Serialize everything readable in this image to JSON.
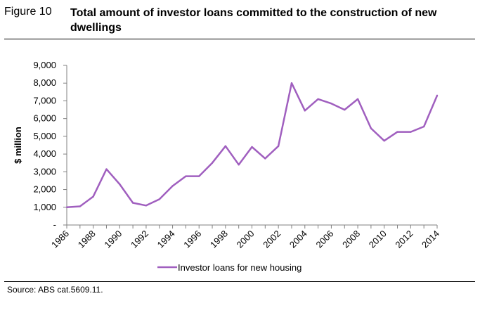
{
  "figure": {
    "label": "Figure 10",
    "title": "Total amount of investor loans committed to the construction of new dwellings"
  },
  "source": "Source: ABS cat.5609.11.",
  "colors": {
    "series": "#a05fbf",
    "axis": "#808080",
    "text": "#000000"
  },
  "chart_data": {
    "type": "line",
    "title": "Total amount of investor loans committed to the construction of new dwellings",
    "ylabel": "$ million",
    "xlabel": "",
    "ylim": [
      0,
      9000
    ],
    "xlim": [
      1986,
      2014
    ],
    "grid": false,
    "legend": "bottom",
    "y_ticks": [
      {
        "value": 0,
        "label": "-"
      },
      {
        "value": 1000,
        "label": "1,000"
      },
      {
        "value": 2000,
        "label": "2,000"
      },
      {
        "value": 3000,
        "label": "3,000"
      },
      {
        "value": 4000,
        "label": "4,000"
      },
      {
        "value": 5000,
        "label": "5,000"
      },
      {
        "value": 6000,
        "label": "6,000"
      },
      {
        "value": 7000,
        "label": "7,000"
      },
      {
        "value": 8000,
        "label": "8,000"
      },
      {
        "value": 9000,
        "label": "9,000"
      }
    ],
    "x_ticks": [
      "1986",
      "1988",
      "1990",
      "1992",
      "1994",
      "1996",
      "1998",
      "2000",
      "2002",
      "2004",
      "2006",
      "2008",
      "2010",
      "2012",
      "2014"
    ],
    "series": [
      {
        "name": "Investor loans for new housing",
        "x": [
          1986,
          1987,
          1988,
          1989,
          1990,
          1991,
          1992,
          1993,
          1994,
          1995,
          1996,
          1997,
          1998,
          1999,
          2000,
          2001,
          2002,
          2003,
          2004,
          2005,
          2006,
          2007,
          2008,
          2009,
          2010,
          2011,
          2012,
          2013,
          2014
        ],
        "values": [
          1000,
          1050,
          1600,
          3150,
          2300,
          1250,
          1100,
          1450,
          2200,
          2750,
          2750,
          3500,
          4450,
          3400,
          4400,
          3750,
          4450,
          8000,
          6450,
          7100,
          6850,
          6500,
          7100,
          5450,
          4750,
          5250,
          5250,
          5550,
          7300
        ]
      }
    ]
  }
}
